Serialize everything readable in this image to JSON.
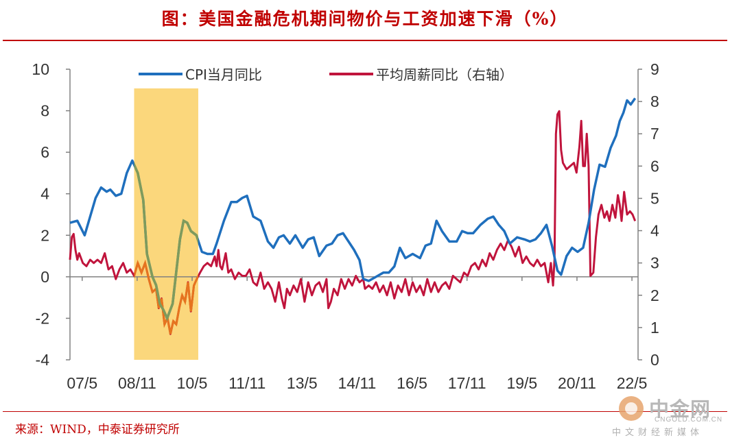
{
  "title": "图：美国金融危机期间物价与工资加速下滑（%）",
  "source": "来源：WIND，中泰证券研究所",
  "watermark": {
    "name": "中金网",
    "domain": "CNGOLD.COM.CN",
    "slogan": "中文财经新媒体",
    "logo_icon": "cngold-logo-icon"
  },
  "colors": {
    "cpi": "#1f6fbd",
    "wage": "#c0143c",
    "highlight": "#fbd77c",
    "cpi_in_band": "#7f9b5b",
    "wage_in_band": "#e6741e",
    "title": "#c00000"
  },
  "chart_data": {
    "type": "line",
    "title": "美国金融危机期间物价与工资加速下滑（%）",
    "x_tick_labels": [
      "07/5",
      "08/11",
      "10/5",
      "11/11",
      "13/5",
      "14/11",
      "16/5",
      "17/11",
      "19/5",
      "20/11",
      "22/5"
    ],
    "x_tick_values": [
      2007.333,
      2008.833,
      2010.333,
      2011.833,
      2013.333,
      2014.833,
      2016.333,
      2017.833,
      2019.333,
      2020.833,
      2022.333
    ],
    "xlim": [
      2007.0,
      2022.5
    ],
    "y_left": {
      "label": "",
      "ylim": [
        -4,
        10
      ],
      "ticks": [
        "-4",
        "-2",
        "0",
        "2",
        "4",
        "6",
        "8",
        "10"
      ]
    },
    "y_right": {
      "label": "右轴",
      "ylim": [
        0,
        9
      ],
      "ticks": [
        "0",
        "1",
        "2",
        "3",
        "4",
        "5",
        "6",
        "7",
        "8",
        "9"
      ]
    },
    "highlight_period": [
      2008.75,
      2010.5
    ],
    "legend": [
      "CPI当月同比",
      "平均周薪同比（右轴）"
    ],
    "series": [
      {
        "name": "CPI当月同比",
        "axis": "left",
        "points": [
          [
            2007.0,
            2.6
          ],
          [
            2007.2,
            2.7
          ],
          [
            2007.4,
            2.0
          ],
          [
            2007.55,
            2.9
          ],
          [
            2007.7,
            3.8
          ],
          [
            2007.85,
            4.3
          ],
          [
            2008.0,
            4.1
          ],
          [
            2008.1,
            4.2
          ],
          [
            2008.25,
            3.9
          ],
          [
            2008.4,
            4.0
          ],
          [
            2008.55,
            5.0
          ],
          [
            2008.7,
            5.6
          ],
          [
            2008.85,
            5.0
          ],
          [
            2009.0,
            3.7
          ],
          [
            2009.1,
            1.1
          ],
          [
            2009.25,
            0.0
          ],
          [
            2009.35,
            -0.4
          ],
          [
            2009.45,
            -1.3
          ],
          [
            2009.55,
            -1.6
          ],
          [
            2009.65,
            -2.0
          ],
          [
            2009.8,
            -1.3
          ],
          [
            2010.0,
            1.8
          ],
          [
            2010.1,
            2.7
          ],
          [
            2010.2,
            2.6
          ],
          [
            2010.3,
            2.2
          ],
          [
            2010.45,
            2.0
          ],
          [
            2010.6,
            1.2
          ],
          [
            2010.75,
            1.1
          ],
          [
            2010.9,
            1.1
          ],
          [
            2011.0,
            1.6
          ],
          [
            2011.2,
            2.7
          ],
          [
            2011.4,
            3.6
          ],
          [
            2011.55,
            3.6
          ],
          [
            2011.7,
            3.8
          ],
          [
            2011.83,
            3.9
          ],
          [
            2012.0,
            2.9
          ],
          [
            2012.2,
            2.7
          ],
          [
            2012.4,
            1.7
          ],
          [
            2012.55,
            1.4
          ],
          [
            2012.7,
            1.9
          ],
          [
            2012.83,
            2.0
          ],
          [
            2013.0,
            1.6
          ],
          [
            2013.15,
            2.0
          ],
          [
            2013.35,
            1.4
          ],
          [
            2013.5,
            1.8
          ],
          [
            2013.65,
            1.9
          ],
          [
            2013.8,
            1.0
          ],
          [
            2014.0,
            1.5
          ],
          [
            2014.15,
            1.6
          ],
          [
            2014.3,
            2.0
          ],
          [
            2014.45,
            2.1
          ],
          [
            2014.6,
            1.7
          ],
          [
            2014.75,
            1.3
          ],
          [
            2014.9,
            0.8
          ],
          [
            2015.0,
            -0.1
          ],
          [
            2015.15,
            -0.2
          ],
          [
            2015.35,
            0.0
          ],
          [
            2015.55,
            0.2
          ],
          [
            2015.7,
            0.2
          ],
          [
            2015.85,
            0.5
          ],
          [
            2016.0,
            1.4
          ],
          [
            2016.15,
            0.9
          ],
          [
            2016.35,
            1.1
          ],
          [
            2016.55,
            0.9
          ],
          [
            2016.7,
            1.5
          ],
          [
            2016.85,
            1.6
          ],
          [
            2017.0,
            2.7
          ],
          [
            2017.15,
            2.2
          ],
          [
            2017.35,
            1.7
          ],
          [
            2017.55,
            1.7
          ],
          [
            2017.7,
            2.2
          ],
          [
            2017.85,
            2.1
          ],
          [
            2018.0,
            2.1
          ],
          [
            2018.2,
            2.5
          ],
          [
            2018.4,
            2.8
          ],
          [
            2018.55,
            2.9
          ],
          [
            2018.7,
            2.5
          ],
          [
            2018.85,
            2.2
          ],
          [
            2019.0,
            1.6
          ],
          [
            2019.2,
            1.9
          ],
          [
            2019.4,
            1.8
          ],
          [
            2019.55,
            1.7
          ],
          [
            2019.7,
            1.8
          ],
          [
            2019.85,
            2.1
          ],
          [
            2020.0,
            2.5
          ],
          [
            2020.15,
            1.5
          ],
          [
            2020.3,
            0.3
          ],
          [
            2020.4,
            0.1
          ],
          [
            2020.55,
            1.0
          ],
          [
            2020.7,
            1.4
          ],
          [
            2020.85,
            1.2
          ],
          [
            2021.0,
            1.4
          ],
          [
            2021.15,
            2.6
          ],
          [
            2021.3,
            4.2
          ],
          [
            2021.45,
            5.4
          ],
          [
            2021.6,
            5.3
          ],
          [
            2021.75,
            6.2
          ],
          [
            2021.9,
            6.8
          ],
          [
            2022.0,
            7.5
          ],
          [
            2022.1,
            7.9
          ],
          [
            2022.2,
            8.5
          ],
          [
            2022.3,
            8.3
          ],
          [
            2022.42,
            8.6
          ]
        ]
      },
      {
        "name": "平均周薪同比（右轴）",
        "axis": "right",
        "points": [
          [
            2007.0,
            3.1
          ],
          [
            2007.05,
            3.8
          ],
          [
            2007.1,
            3.9
          ],
          [
            2007.15,
            3.4
          ],
          [
            2007.2,
            3.1
          ],
          [
            2007.25,
            3.3
          ],
          [
            2007.35,
            3.0
          ],
          [
            2007.45,
            2.9
          ],
          [
            2007.55,
            3.1
          ],
          [
            2007.65,
            3.0
          ],
          [
            2007.75,
            3.1
          ],
          [
            2007.85,
            3.0
          ],
          [
            2007.95,
            3.3
          ],
          [
            2008.05,
            2.8
          ],
          [
            2008.15,
            2.9
          ],
          [
            2008.25,
            2.5
          ],
          [
            2008.35,
            2.8
          ],
          [
            2008.45,
            3.0
          ],
          [
            2008.55,
            2.7
          ],
          [
            2008.65,
            2.8
          ],
          [
            2008.75,
            2.6
          ],
          [
            2008.85,
            3.0
          ],
          [
            2008.95,
            2.7
          ],
          [
            2009.05,
            3.0
          ],
          [
            2009.15,
            2.5
          ],
          [
            2009.25,
            2.1
          ],
          [
            2009.35,
            2.2
          ],
          [
            2009.42,
            1.6
          ],
          [
            2009.5,
            1.9
          ],
          [
            2009.58,
            1.1
          ],
          [
            2009.66,
            1.3
          ],
          [
            2009.74,
            0.8
          ],
          [
            2009.82,
            1.2
          ],
          [
            2009.9,
            1.1
          ],
          [
            2009.98,
            1.6
          ],
          [
            2010.06,
            2.0
          ],
          [
            2010.14,
            1.8
          ],
          [
            2010.22,
            2.4
          ],
          [
            2010.3,
            1.5
          ],
          [
            2010.38,
            2.3
          ],
          [
            2010.46,
            2.5
          ],
          [
            2010.55,
            2.7
          ],
          [
            2010.65,
            2.9
          ],
          [
            2010.75,
            3.0
          ],
          [
            2010.85,
            2.9
          ],
          [
            2010.95,
            3.2
          ],
          [
            2011.0,
            2.9
          ],
          [
            2011.05,
            3.4
          ],
          [
            2011.1,
            2.9
          ],
          [
            2011.15,
            2.8
          ],
          [
            2011.25,
            3.3
          ],
          [
            2011.32,
            2.7
          ],
          [
            2011.4,
            2.8
          ],
          [
            2011.5,
            2.5
          ],
          [
            2011.6,
            2.7
          ],
          [
            2011.7,
            2.6
          ],
          [
            2011.8,
            2.6
          ],
          [
            2011.9,
            2.8
          ],
          [
            2012.0,
            2.4
          ],
          [
            2012.1,
            2.3
          ],
          [
            2012.2,
            2.7
          ],
          [
            2012.3,
            2.2
          ],
          [
            2012.4,
            2.4
          ],
          [
            2012.5,
            2.2
          ],
          [
            2012.6,
            1.8
          ],
          [
            2012.7,
            2.4
          ],
          [
            2012.78,
            1.9
          ],
          [
            2012.85,
            1.6
          ],
          [
            2012.92,
            2.2
          ],
          [
            2013.0,
            2.0
          ],
          [
            2013.1,
            2.3
          ],
          [
            2013.2,
            2.1
          ],
          [
            2013.3,
            2.5
          ],
          [
            2013.4,
            1.8
          ],
          [
            2013.5,
            2.4
          ],
          [
            2013.6,
            2.0
          ],
          [
            2013.7,
            2.3
          ],
          [
            2013.8,
            2.4
          ],
          [
            2013.9,
            2.1
          ],
          [
            2014.0,
            2.5
          ],
          [
            2014.05,
            1.6
          ],
          [
            2014.12,
            1.8
          ],
          [
            2014.2,
            2.2
          ],
          [
            2014.3,
            2.0
          ],
          [
            2014.4,
            2.5
          ],
          [
            2014.5,
            2.2
          ],
          [
            2014.6,
            2.5
          ],
          [
            2014.7,
            2.3
          ],
          [
            2014.8,
            2.6
          ],
          [
            2014.9,
            2.4
          ],
          [
            2015.0,
            2.5
          ],
          [
            2015.05,
            2.2
          ],
          [
            2015.15,
            2.3
          ],
          [
            2015.25,
            2.2
          ],
          [
            2015.35,
            2.4
          ],
          [
            2015.45,
            2.1
          ],
          [
            2015.55,
            2.3
          ],
          [
            2015.65,
            2.0
          ],
          [
            2015.75,
            2.4
          ],
          [
            2015.85,
            1.9
          ],
          [
            2015.95,
            2.3
          ],
          [
            2016.05,
            2.1
          ],
          [
            2016.15,
            2.5
          ],
          [
            2016.25,
            2.0
          ],
          [
            2016.35,
            2.4
          ],
          [
            2016.45,
            2.1
          ],
          [
            2016.55,
            2.3
          ],
          [
            2016.65,
            2.0
          ],
          [
            2016.75,
            2.5
          ],
          [
            2016.85,
            2.1
          ],
          [
            2016.95,
            2.4
          ],
          [
            2017.05,
            2.1
          ],
          [
            2017.15,
            2.3
          ],
          [
            2017.25,
            2.4
          ],
          [
            2017.35,
            2.2
          ],
          [
            2017.45,
            2.6
          ],
          [
            2017.55,
            2.5
          ],
          [
            2017.65,
            2.4
          ],
          [
            2017.75,
            2.7
          ],
          [
            2017.85,
            2.6
          ],
          [
            2017.95,
            2.9
          ],
          [
            2018.05,
            3.0
          ],
          [
            2018.15,
            2.8
          ],
          [
            2018.25,
            3.1
          ],
          [
            2018.35,
            2.9
          ],
          [
            2018.45,
            3.3
          ],
          [
            2018.55,
            3.1
          ],
          [
            2018.65,
            3.4
          ],
          [
            2018.75,
            3.6
          ],
          [
            2018.85,
            3.4
          ],
          [
            2018.95,
            3.7
          ],
          [
            2019.05,
            3.5
          ],
          [
            2019.15,
            3.2
          ],
          [
            2019.25,
            3.5
          ],
          [
            2019.35,
            3.0
          ],
          [
            2019.45,
            3.2
          ],
          [
            2019.55,
            3.0
          ],
          [
            2019.65,
            2.9
          ],
          [
            2019.75,
            3.1
          ],
          [
            2019.85,
            2.9
          ],
          [
            2019.95,
            3.0
          ],
          [
            2020.05,
            2.4
          ],
          [
            2020.12,
            3.0
          ],
          [
            2020.18,
            2.3
          ],
          [
            2020.22,
            3.1
          ],
          [
            2020.26,
            7.0
          ],
          [
            2020.3,
            7.6
          ],
          [
            2020.35,
            7.7
          ],
          [
            2020.4,
            6.5
          ],
          [
            2020.45,
            6.1
          ],
          [
            2020.55,
            5.9
          ],
          [
            2020.65,
            6.0
          ],
          [
            2020.75,
            6.1
          ],
          [
            2020.82,
            5.8
          ],
          [
            2020.9,
            6.6
          ],
          [
            2020.95,
            7.4
          ],
          [
            2021.0,
            6.0
          ],
          [
            2021.05,
            6.0
          ],
          [
            2021.1,
            7.0
          ],
          [
            2021.15,
            6.0
          ],
          [
            2021.2,
            2.6
          ],
          [
            2021.28,
            2.7
          ],
          [
            2021.35,
            3.8
          ],
          [
            2021.42,
            4.5
          ],
          [
            2021.5,
            4.8
          ],
          [
            2021.58,
            4.4
          ],
          [
            2021.65,
            4.6
          ],
          [
            2021.72,
            4.3
          ],
          [
            2021.8,
            4.8
          ],
          [
            2021.88,
            4.4
          ],
          [
            2021.95,
            5.1
          ],
          [
            2022.0,
            4.8
          ],
          [
            2022.05,
            4.3
          ],
          [
            2022.12,
            5.2
          ],
          [
            2022.2,
            4.5
          ],
          [
            2022.28,
            4.6
          ],
          [
            2022.35,
            4.5
          ],
          [
            2022.42,
            4.3
          ]
        ]
      }
    ]
  }
}
